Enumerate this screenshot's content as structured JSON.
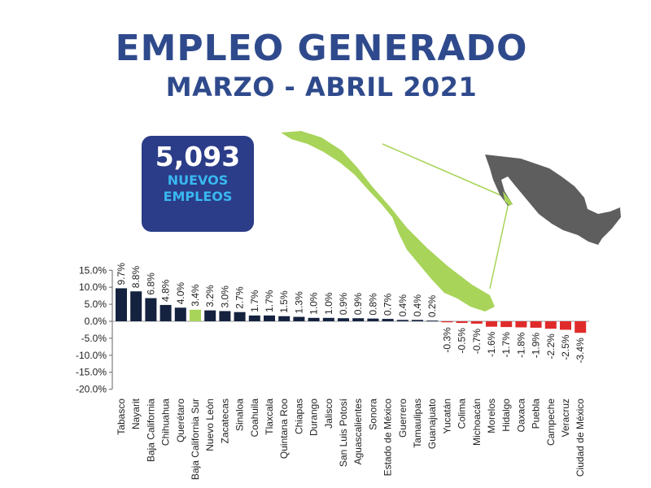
{
  "header": {
    "title": "EMPLEO GENERADO",
    "subtitle": "MARZO - ABRIL 2021"
  },
  "badge": {
    "number": "5,093",
    "line1": "NUEVOS",
    "line2": "EMPLEOS"
  },
  "colors": {
    "title": "#2f4a8c",
    "badge_bg": "#2b3c88",
    "badge_text_accent": "#39b8f0",
    "positive_bar": "#14223f",
    "highlight_bar": "#a8d45a",
    "negative_bar": "#e02b2b",
    "map_highlight": "#a8d45a",
    "map_country": "#5e5e5e"
  },
  "map": {
    "highlight_icon": "baja-california-sur-map-icon",
    "country_icon": "mexico-map-icon"
  },
  "chart_data": {
    "type": "bar",
    "categories": [
      "Tabasco",
      "Nayarit",
      "Baja California",
      "Chihuahua",
      "Querétaro",
      "Baja California Sur",
      "Nuevo León",
      "Zacatecas",
      "Sinaloa",
      "Coahuila",
      "Tlaxcala",
      "Quintana Roo",
      "Chiapas",
      "Durango",
      "Jalisco",
      "San Luis Potosí",
      "Aguascalientes",
      "Sonora",
      "Estado de México",
      "Guerrero",
      "Tamaulipas",
      "Guanajuato",
      "Yucatán",
      "Colima",
      "Michoacán",
      "Morelos",
      "Hidalgo",
      "Oaxaca",
      "Puebla",
      "Campeche",
      "Veracruz",
      "Ciudad de México"
    ],
    "values": [
      9.7,
      8.8,
      6.8,
      4.8,
      4.0,
      3.4,
      3.2,
      3.0,
      2.7,
      1.7,
      1.7,
      1.5,
      1.3,
      1.0,
      1.0,
      0.9,
      0.9,
      0.8,
      0.7,
      0.4,
      0.4,
      0.2,
      -0.3,
      -0.5,
      -0.7,
      -1.6,
      -1.7,
      -1.8,
      -1.9,
      -2.2,
      -2.5,
      -3.4
    ],
    "labels": [
      "9.7%",
      "8.8%",
      "6.8%",
      "4.8%",
      "4.0%",
      "3.4%",
      "3.2%",
      "3.0%",
      "2.7%",
      "1.7%",
      "1.7%",
      "1.5%",
      "1.3%",
      "1.0%",
      "1.0%",
      "0.9%",
      "0.9%",
      "0.8%",
      "0.7%",
      "0.4%",
      "0.4%",
      "0.2%",
      "-0.3%",
      "-0.5%",
      "-0.7%",
      "-1.6%",
      "-1.7%",
      "-1.8%",
      "-1.9%",
      "-2.2%",
      "-2.5%",
      "-3.4%"
    ],
    "highlight_category": "Baja California Sur",
    "yticks": [
      15,
      10,
      5,
      0,
      -5,
      -10,
      -15,
      -20
    ],
    "ytick_labels": [
      "15.0%",
      "10.0%",
      "5.0%",
      "0.0%",
      "-5.0%",
      "-10.0%",
      "-15.0%",
      "-20.0%"
    ],
    "ylim": [
      -20,
      15
    ],
    "xlabel": "",
    "ylabel": "",
    "grid": false
  }
}
